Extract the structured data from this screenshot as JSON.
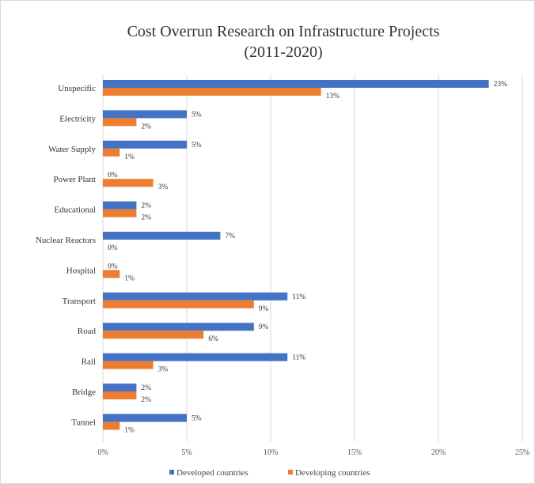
{
  "chart_data": {
    "type": "bar",
    "orientation": "horizontal",
    "title": "Cost Overrun Research on Infrastructure Projects",
    "subtitle": "(2011-2020)",
    "categories": [
      "Unspecific",
      "Electricity",
      "Water Supply",
      "Power Plant",
      "Educational",
      "Nuclear Reactors",
      "Hospital",
      "Transport",
      "Road",
      "Rail",
      "Bridge",
      "Tunnel"
    ],
    "series": [
      {
        "name": "Developed countries",
        "color": "#4472C4",
        "values": [
          23,
          5,
          5,
          0,
          2,
          7,
          0,
          11,
          9,
          11,
          2,
          5
        ]
      },
      {
        "name": "Developing countries",
        "color": "#ED7D31",
        "values": [
          13,
          2,
          1,
          3,
          2,
          0,
          1,
          9,
          6,
          3,
          2,
          1
        ]
      }
    ],
    "xlim": [
      0,
      25
    ],
    "x_ticks": [
      0,
      5,
      10,
      15,
      20,
      25
    ],
    "tick_suffix": "%",
    "grid": true,
    "legend_position": "bottom",
    "xlabel": "",
    "ylabel": ""
  }
}
